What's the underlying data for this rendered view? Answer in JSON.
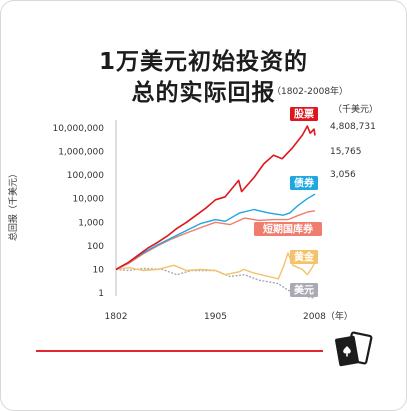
{
  "title": {
    "line1": "1万美元初始投资的",
    "line2": "总的实际回报",
    "subtitle": "（1802-2008年）"
  },
  "colors": {
    "stocks": "#e0161e",
    "bonds": "#1ea7e1",
    "bills": "#ef7d6e",
    "gold": "#f3c26a",
    "dollar": "#a9a9b4",
    "bottom_rule": "#e0282e"
  },
  "chart_data": {
    "type": "line",
    "scale": "log",
    "ylabel": "总回报（千美元）",
    "ylim": [
      1,
      10000000
    ],
    "xlim": [
      1802,
      2008
    ],
    "y_ticks": [
      {
        "value": 10000000,
        "label": "10,000,000"
      },
      {
        "value": 1000000,
        "label": "1,000,000"
      },
      {
        "value": 100000,
        "label": "100,000"
      },
      {
        "value": 10000,
        "label": "10,000"
      },
      {
        "value": 1000,
        "label": "1,000"
      },
      {
        "value": 100,
        "label": "100"
      },
      {
        "value": 10,
        "label": "10"
      },
      {
        "value": 1,
        "label": "1"
      }
    ],
    "x_ticks": [
      {
        "value": 1802,
        "label": "1802"
      },
      {
        "value": 1905,
        "label": "1905"
      },
      {
        "value": 2008,
        "label": "2008（年）"
      }
    ],
    "unit_label": "（千美元）",
    "grid": false,
    "series": [
      {
        "key": "stocks",
        "name": "股票",
        "end_value_label": "4,808,731",
        "points": [
          [
            1802,
            10
          ],
          [
            1815,
            20
          ],
          [
            1825,
            40
          ],
          [
            1835,
            80
          ],
          [
            1845,
            140
          ],
          [
            1855,
            260
          ],
          [
            1865,
            550
          ],
          [
            1875,
            1000
          ],
          [
            1885,
            2000
          ],
          [
            1895,
            4000
          ],
          [
            1905,
            9000
          ],
          [
            1915,
            12000
          ],
          [
            1929,
            60000
          ],
          [
            1932,
            20000
          ],
          [
            1945,
            80000
          ],
          [
            1955,
            300000
          ],
          [
            1965,
            700000
          ],
          [
            1974,
            500000
          ],
          [
            1985,
            1500000
          ],
          [
            1995,
            5000000
          ],
          [
            2000,
            12000000
          ],
          [
            2003,
            6000000
          ],
          [
            2007,
            9000000
          ],
          [
            2008,
            4808731
          ]
        ]
      },
      {
        "key": "bonds",
        "name": "债券",
        "end_value_label": "15,765",
        "points": [
          [
            1802,
            10
          ],
          [
            1815,
            20
          ],
          [
            1830,
            50
          ],
          [
            1845,
            110
          ],
          [
            1860,
            220
          ],
          [
            1875,
            450
          ],
          [
            1890,
            900
          ],
          [
            1905,
            1300
          ],
          [
            1915,
            1100
          ],
          [
            1930,
            2500
          ],
          [
            1945,
            3500
          ],
          [
            1960,
            2500
          ],
          [
            1975,
            2000
          ],
          [
            1982,
            2500
          ],
          [
            1990,
            5000
          ],
          [
            2000,
            10000
          ],
          [
            2008,
            15765
          ]
        ]
      },
      {
        "key": "bills",
        "name": "短期国库券",
        "end_value_label": "3,056",
        "points": [
          [
            1802,
            10
          ],
          [
            1815,
            18
          ],
          [
            1830,
            45
          ],
          [
            1845,
            100
          ],
          [
            1860,
            200
          ],
          [
            1875,
            350
          ],
          [
            1890,
            600
          ],
          [
            1905,
            1000
          ],
          [
            1920,
            800
          ],
          [
            1935,
            1500
          ],
          [
            1950,
            1200
          ],
          [
            1965,
            1300
          ],
          [
            1980,
            1300
          ],
          [
            1990,
            1900
          ],
          [
            2000,
            2700
          ],
          [
            2008,
            3056
          ]
        ]
      },
      {
        "key": "gold",
        "name": "黄金",
        "points": [
          [
            1802,
            10
          ],
          [
            1815,
            12
          ],
          [
            1830,
            9
          ],
          [
            1845,
            10
          ],
          [
            1862,
            15
          ],
          [
            1875,
            9
          ],
          [
            1890,
            10
          ],
          [
            1905,
            9
          ],
          [
            1915,
            6
          ],
          [
            1930,
            8
          ],
          [
            1934,
            10
          ],
          [
            1945,
            7
          ],
          [
            1960,
            5
          ],
          [
            1970,
            4
          ],
          [
            1975,
            12
          ],
          [
            1980,
            50
          ],
          [
            1985,
            15
          ],
          [
            1995,
            10
          ],
          [
            2000,
            6
          ],
          [
            2005,
            12
          ],
          [
            2008,
            20
          ]
        ]
      },
      {
        "key": "dollar",
        "name": "美元",
        "points": [
          [
            1802,
            10
          ],
          [
            1815,
            9
          ],
          [
            1830,
            11
          ],
          [
            1850,
            10
          ],
          [
            1865,
            6
          ],
          [
            1880,
            9
          ],
          [
            1905,
            9
          ],
          [
            1920,
            5
          ],
          [
            1935,
            6
          ],
          [
            1950,
            3.5
          ],
          [
            1960,
            3
          ],
          [
            1970,
            2.5
          ],
          [
            1980,
            1.3
          ],
          [
            1990,
            1
          ],
          [
            2000,
            0.7
          ],
          [
            2008,
            0.6
          ]
        ]
      }
    ]
  }
}
